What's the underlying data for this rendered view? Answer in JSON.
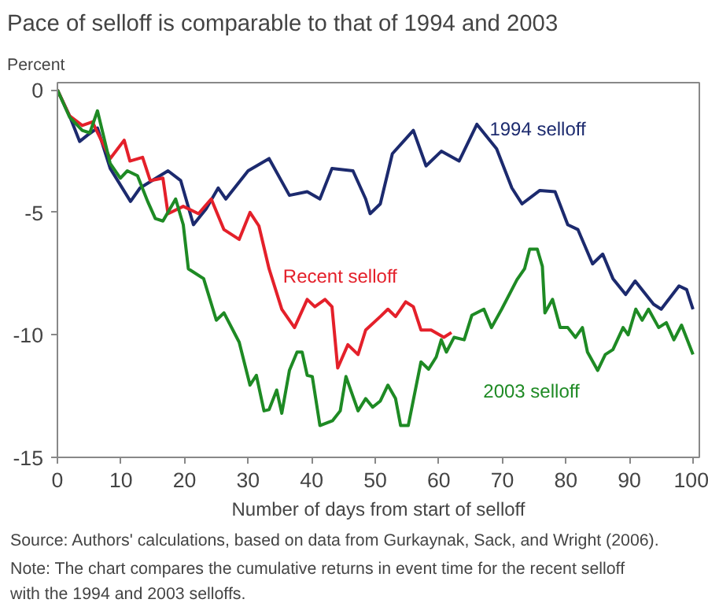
{
  "chart_data": {
    "type": "line",
    "title": "Pace of selloff is comparable to that of 1994 and 2003",
    "ylabel": "Percent",
    "xlabel": "Number of days from start of selloff",
    "annotations": [
      "Source: Authors' calculations, based on data from Gurkaynak, Sack, and Wright (2006).",
      "Note: The chart compares the cumulative returns in event time for the recent selloff with the 1994 and 2003 selloffs."
    ],
    "xlim": [
      0,
      101
    ],
    "ylim": [
      -15,
      0.3
    ],
    "xticks": [
      0,
      10,
      20,
      30,
      40,
      50,
      60,
      70,
      80,
      90,
      100
    ],
    "yticks": [
      0,
      -5,
      -10,
      -15
    ],
    "grid": false,
    "legend": false,
    "marker": "none",
    "line_style": "solid",
    "series": [
      {
        "name": "1994 selloff",
        "color": "#1c2a6e",
        "x": [
          0,
          1.9,
          3.5,
          4.7,
          6.3,
          8.3,
          11.5,
          13,
          17.4,
          19.4,
          21.4,
          23.4,
          25.3,
          26.5,
          30,
          33.3,
          36.5,
          39.3,
          41.3,
          43.2,
          46.5,
          48.5,
          49.2,
          50.8,
          52.7,
          56,
          58,
          60.4,
          63.2,
          66,
          69.1,
          71.5,
          73.1,
          75.9,
          78.3,
          80.3,
          81.9,
          84.2,
          85.8,
          87.4,
          89.4,
          90.9,
          93.8,
          95,
          97.8,
          99,
          100
        ],
        "values": [
          0,
          -1.05,
          -2.1,
          -1.85,
          -1.55,
          -3.2,
          -4.55,
          -4.0,
          -3.3,
          -3.7,
          -5.5,
          -4.85,
          -4.0,
          -4.45,
          -3.3,
          -2.8,
          -4.3,
          -4.15,
          -4.45,
          -3.2,
          -3.3,
          -4.45,
          -5.05,
          -4.65,
          -2.6,
          -1.65,
          -3.1,
          -2.5,
          -2.9,
          -1.4,
          -2.4,
          -4.0,
          -4.65,
          -4.1,
          -4.15,
          -5.5,
          -5.7,
          -7.1,
          -6.7,
          -7.7,
          -8.35,
          -7.8,
          -8.75,
          -8.95,
          -8.0,
          -8.15,
          -8.95
        ]
      },
      {
        "name": "Recent selloff",
        "color": "#e4202a",
        "x": [
          0,
          1.9,
          3.9,
          5.5,
          8.3,
          10.5,
          11.4,
          13.4,
          14.6,
          16.6,
          17.4,
          19.8,
          22.2,
          24.2,
          26.2,
          28.6,
          30.3,
          31.7,
          33.3,
          35.3,
          37.3,
          39.3,
          40.5,
          42.1,
          43.2,
          44.1,
          45.7,
          47.3,
          48.5,
          50.8,
          52,
          53.2,
          54.8,
          56,
          57.2,
          58.8,
          60.8,
          62
        ],
        "values": [
          0,
          -1.05,
          -1.45,
          -1.3,
          -2.8,
          -2.05,
          -2.9,
          -2.75,
          -3.7,
          -3.6,
          -5.05,
          -4.75,
          -5.05,
          -4.45,
          -5.7,
          -6.1,
          -5.0,
          -5.55,
          -7.3,
          -8.95,
          -9.7,
          -8.55,
          -8.85,
          -8.55,
          -8.85,
          -11.35,
          -10.4,
          -10.8,
          -9.8,
          -9.25,
          -8.95,
          -9.25,
          -8.65,
          -8.85,
          -9.8,
          -9.8,
          -10.1,
          -9.9
        ]
      },
      {
        "name": "2003 selloff",
        "color": "#1e8a24",
        "x": [
          0,
          1.9,
          3.9,
          5.1,
          6.3,
          8.3,
          9.9,
          11,
          12.6,
          14.2,
          15.4,
          16.6,
          18.6,
          19.8,
          20.6,
          23,
          25,
          26.2,
          28.6,
          30.3,
          31.3,
          32.5,
          33.3,
          34.5,
          35.3,
          36.5,
          37.7,
          38.5,
          39.3,
          40.1,
          41.3,
          43.3,
          44.5,
          45.4,
          47.3,
          48.5,
          49.6,
          50.8,
          52,
          53.2,
          54,
          55.2,
          57.2,
          58.4,
          59.6,
          60.4,
          61.2,
          62.4,
          64,
          65.2,
          67.1,
          68.3,
          69.9,
          72.3,
          73.5,
          74.3,
          75.5,
          76.3,
          76.7,
          77.9,
          79.1,
          80.3,
          81.5,
          82.6,
          83.4,
          85,
          86.2,
          87.4,
          89,
          89.8,
          91,
          92,
          93,
          94.6,
          95.8,
          97,
          98.2,
          100
        ],
        "values": [
          0,
          -1.1,
          -1.65,
          -1.75,
          -0.85,
          -3.0,
          -3.6,
          -3.3,
          -3.5,
          -4.55,
          -5.25,
          -5.35,
          -4.45,
          -5.5,
          -7.3,
          -7.7,
          -9.4,
          -9.1,
          -10.3,
          -12.05,
          -11.65,
          -13.1,
          -13.05,
          -12.25,
          -13.2,
          -11.45,
          -10.7,
          -10.7,
          -11.65,
          -11.7,
          -13.7,
          -13.5,
          -13.1,
          -11.7,
          -13.1,
          -12.6,
          -12.95,
          -12.7,
          -12.05,
          -12.6,
          -13.7,
          -13.7,
          -11.1,
          -11.4,
          -10.9,
          -10.2,
          -10.7,
          -10.1,
          -10.2,
          -9.2,
          -8.95,
          -9.7,
          -8.95,
          -7.75,
          -7.3,
          -6.5,
          -6.5,
          -7.2,
          -9.1,
          -8.55,
          -9.7,
          -9.7,
          -10.1,
          -9.7,
          -10.7,
          -11.45,
          -10.8,
          -10.6,
          -9.7,
          -10.0,
          -8.95,
          -9.4,
          -8.95,
          -9.7,
          -9.5,
          -10.2,
          -9.6,
          -10.8
        ]
      }
    ]
  }
}
